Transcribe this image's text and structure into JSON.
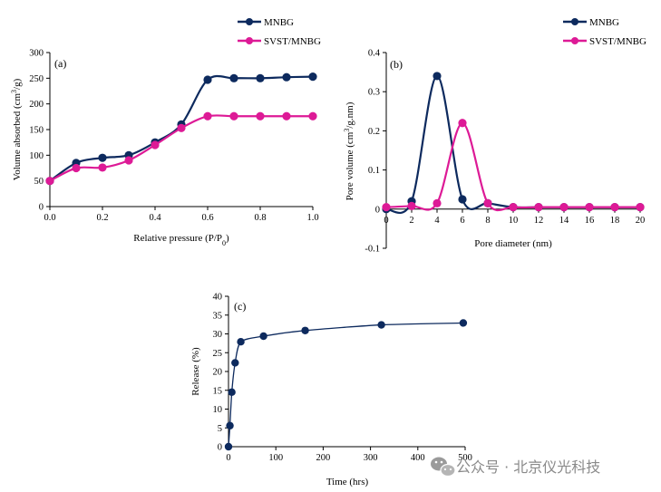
{
  "colors": {
    "MNBG": "#0d2a5e",
    "SVST/MNBG": "#dd1a96"
  },
  "watermark": {
    "text": "公众号 · 北京仪光科技",
    "icon": "wechat-icon"
  },
  "chart_data": [
    {
      "id": "a",
      "type": "line",
      "panel_label": "(a)",
      "xlabel": "Relative pressure (P/P",
      "xlabel_sub": "0",
      "xlabel_end": ")",
      "ylabel": "Volume absorbed (cm",
      "ylabel_sup": "3",
      "ylabel_end": "/g)",
      "xlim": [
        0,
        1.0
      ],
      "ylim": [
        0,
        300
      ],
      "xticks": [
        "0.0",
        "0.2",
        "0.4",
        "0.6",
        "0.8",
        "1.0"
      ],
      "yticks": [
        "0",
        "50",
        "100",
        "150",
        "200",
        "250",
        "300"
      ],
      "x": [
        0,
        0.1,
        0.2,
        0.3,
        0.4,
        0.5,
        0.6,
        0.7,
        0.8,
        0.9,
        1.0
      ],
      "series": [
        {
          "name": "MNBG",
          "values": [
            50,
            85,
            95,
            100,
            125,
            160,
            247,
            250,
            250,
            252,
            253
          ]
        },
        {
          "name": "SVST/MNBG",
          "values": [
            50,
            75,
            76,
            90,
            120,
            153,
            176,
            176,
            176,
            176,
            176
          ]
        }
      ],
      "legend": "top-right"
    },
    {
      "id": "b",
      "type": "line",
      "panel_label": "(b)",
      "xlabel": "Pore diameter (nm)",
      "ylabel": "Pore volume (cm",
      "ylabel_sup": "3",
      "ylabel_end": "/g.nm)",
      "xlim": [
        0,
        20
      ],
      "ylim": [
        -0.1,
        0.4
      ],
      "xticks": [
        "0",
        "2",
        "4",
        "6",
        "8",
        "10",
        "12",
        "14",
        "16",
        "18",
        "20"
      ],
      "yticks": [
        "-0.1",
        "0",
        "0.1",
        "0.2",
        "0.3",
        "0.4"
      ],
      "x": [
        0,
        2,
        4,
        6,
        8,
        10,
        12,
        14,
        16,
        18,
        20
      ],
      "series": [
        {
          "name": "MNBG",
          "values": [
            0.0,
            0.02,
            0.34,
            0.025,
            0.015,
            0.005,
            0.005,
            0.005,
            0.005,
            0.005,
            0.005
          ]
        },
        {
          "name": "SVST/MNBG",
          "values": [
            0.005,
            0.008,
            0.015,
            0.22,
            0.015,
            0.005,
            0.005,
            0.005,
            0.005,
            0.005,
            0.005
          ]
        }
      ],
      "legend": "top-right"
    },
    {
      "id": "c",
      "type": "scatter",
      "panel_label": "(c)",
      "xlabel": "Time (hrs)",
      "ylabel": "Release (%)",
      "xlim": [
        0,
        500
      ],
      "ylim": [
        0,
        40
      ],
      "xticks": [
        "0",
        "100",
        "200",
        "300",
        "400",
        "500"
      ],
      "yticks": [
        "0",
        "5",
        "10",
        "15",
        "20",
        "25",
        "30",
        "35",
        "40"
      ],
      "x": [
        0,
        3,
        7,
        14,
        26,
        74,
        162,
        323,
        496
      ],
      "series": [
        {
          "values": [
            0,
            5.6,
            14.5,
            22.3,
            27.9,
            29.4,
            30.9,
            32.4,
            32.9
          ]
        }
      ]
    }
  ]
}
